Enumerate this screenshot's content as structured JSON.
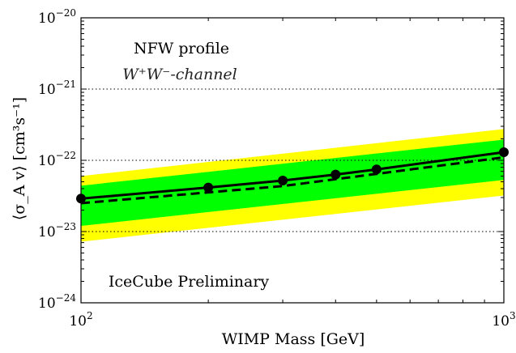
{
  "chart_data": {
    "type": "line",
    "xscale": "log",
    "yscale": "log",
    "xlim": [
      100,
      1000
    ],
    "ylim": [
      1e-24,
      1e-20
    ],
    "xlabel": "WIMP Mass [GeV]",
    "ylabel": "⟨σ_A v⟩ [cm³s⁻¹]",
    "xticks": [
      {
        "value": 100,
        "base": "10",
        "exp": "2"
      },
      {
        "value": 1000,
        "base": "10",
        "exp": "3"
      }
    ],
    "yticks": [
      {
        "value": 1e-24,
        "base": "10",
        "exp": "−24"
      },
      {
        "value": 1e-23,
        "base": "10",
        "exp": "−23"
      },
      {
        "value": 1e-22,
        "base": "10",
        "exp": "−22"
      },
      {
        "value": 1e-21,
        "base": "10",
        "exp": "−21"
      },
      {
        "value": 1e-20,
        "base": "10",
        "exp": "−20"
      }
    ],
    "gridlines_y": [
      1e-23,
      1e-22,
      1e-21
    ],
    "annotations": {
      "profile": "NFW profile",
      "channel": "W⁺W⁻-channel",
      "preliminary": "IceCube Preliminary"
    },
    "colors": {
      "band_2sigma": "#ffff00",
      "band_1sigma": "#00ff00",
      "limit": "#000000"
    },
    "band_2sigma": {
      "x": [
        100,
        1000
      ],
      "lower": [
        7.2e-24,
        3.2e-23
      ],
      "upper": [
        6e-23,
        2.75e-22
      ]
    },
    "band_1sigma": {
      "x": [
        100,
        1000
      ],
      "lower": [
        1.2e-23,
        5.3e-23
      ],
      "upper": [
        4.4e-23,
        1.95e-22
      ]
    },
    "series": [
      {
        "style": "solid-with-markers",
        "x": [
          100,
          200,
          300,
          400,
          500,
          1000
        ],
        "y": [
          2.9e-23,
          4.15e-23,
          5.2e-23,
          6.3e-23,
          7.45e-23,
          1.3e-22
        ]
      },
      {
        "style": "dashed",
        "x": [
          100,
          300,
          1000
        ],
        "y": [
          2.5e-23,
          4.35e-23,
          1.1e-22
        ]
      }
    ]
  }
}
